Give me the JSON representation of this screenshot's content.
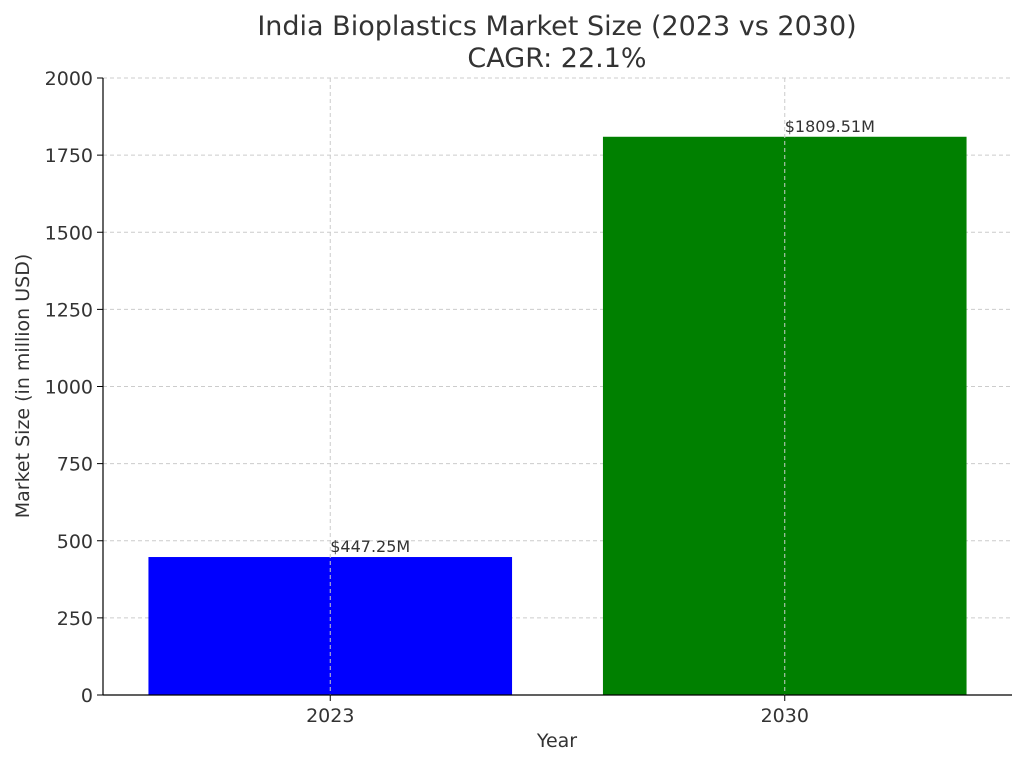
{
  "chart_data": {
    "type": "bar",
    "title": "India Bioplastics Market Size (2023 vs 2030)",
    "subtitle": "CAGR: 22.1%",
    "xlabel": "Year",
    "ylabel": "Market Size (in million USD)",
    "categories": [
      "2023",
      "2030"
    ],
    "values": [
      447.25,
      1809.51
    ],
    "data_labels": [
      "$447.25M",
      "$1809.51M"
    ],
    "colors": [
      "#0000ff",
      "#008000"
    ],
    "ylim": [
      0,
      2000
    ],
    "yticks": [
      0,
      250,
      500,
      750,
      1000,
      1250,
      1500,
      1750,
      2000
    ],
    "grid": true
  }
}
